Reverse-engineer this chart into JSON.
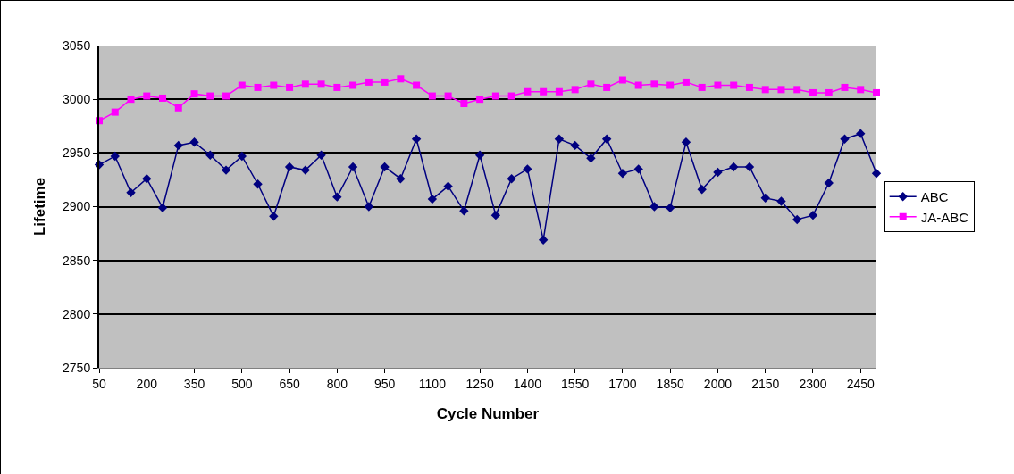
{
  "chart_data": {
    "type": "line",
    "xlabel": "Cycle Number",
    "ylabel": "Lifetime",
    "categories": [
      "50",
      null,
      null,
      "200",
      null,
      null,
      "350",
      null,
      null,
      "500",
      null,
      null,
      "650",
      null,
      null,
      "800",
      null,
      null,
      "950",
      null,
      null,
      "1100",
      null,
      null,
      "1250",
      null,
      null,
      "1400",
      null,
      null,
      "1550",
      null,
      null,
      "1700",
      null,
      null,
      "1850",
      null,
      null,
      "2000",
      null,
      null,
      "2150",
      null,
      null,
      "2300",
      null,
      null,
      "2450",
      null
    ],
    "series": [
      {
        "name": "ABC",
        "color": "#000080",
        "marker": "diamond",
        "values": [
          2939,
          2947,
          2913,
          2926,
          2899,
          2957,
          2960,
          2948,
          2934,
          2947,
          2921,
          2891,
          2937,
          2934,
          2948,
          2909,
          2937,
          2900,
          2937,
          2926,
          2963,
          2907,
          2919,
          2896,
          2948,
          2892,
          2926,
          2935,
          2869,
          2963,
          2957,
          2945,
          2963,
          2931,
          2935,
          2900,
          2899,
          2960,
          2916,
          2932,
          2937,
          2937,
          2908,
          2905,
          2888,
          2892,
          2922,
          2963,
          2968,
          2931
        ]
      },
      {
        "name": "JA-ABC",
        "color": "#ff00ff",
        "marker": "square",
        "values": [
          2980,
          2988,
          3000,
          3003,
          3001,
          2992,
          3005,
          3003,
          3003,
          3013,
          3011,
          3013,
          3011,
          3014,
          3014,
          3011,
          3013,
          3016,
          3016,
          3019,
          3013,
          3003,
          3003,
          2996,
          3000,
          3003,
          3003,
          3007,
          3007,
          3007,
          3009,
          3014,
          3011,
          3018,
          3013,
          3014,
          3013,
          3016,
          3011,
          3013,
          3013,
          3011,
          3009,
          3009,
          3009,
          3006,
          3006,
          3011,
          3009,
          3006
        ]
      }
    ],
    "ylim": [
      2750,
      3050
    ],
    "yticks": [
      2750,
      2800,
      2850,
      2900,
      2950,
      3000,
      3050
    ],
    "grid": "y",
    "legend": "right",
    "line_style": "solid"
  }
}
